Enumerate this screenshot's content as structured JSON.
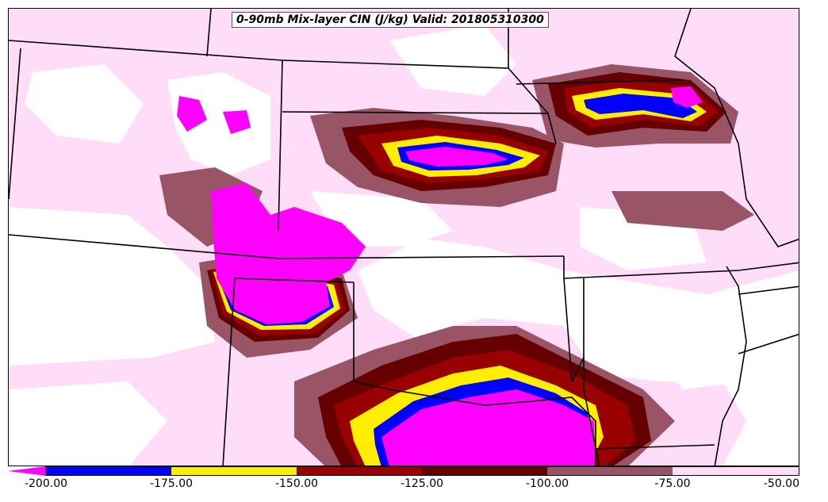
{
  "title": "0-90mb Mix-layer CIN (J/kg) Valid: 201805310300",
  "colorbar": {
    "ticks": [
      "-200.00",
      "-175.00",
      "-150.00",
      "-125.00",
      "-100.00",
      "-75.00",
      "-50.00"
    ],
    "segments": [
      {
        "from": -200,
        "to": -175,
        "color": "#0000ff"
      },
      {
        "from": -175,
        "to": -150,
        "color": "#ffee00"
      },
      {
        "from": -150,
        "to": -125,
        "color": "#990000"
      },
      {
        "from": -125,
        "to": -100,
        "color": "#660000"
      },
      {
        "from": -100,
        "to": -75,
        "color": "#995566"
      },
      {
        "from": -75,
        "to": -50,
        "color": "#ffdcf8"
      }
    ],
    "under_color": "#ff00ff",
    "extend": "min"
  },
  "colors": {
    "magenta": "#ff00ff",
    "blue": "#0000ff",
    "yellow": "#ffee00",
    "dark_red": "#990000",
    "maroon": "#660000",
    "mauve": "#995566",
    "light_pink": "#ffdcf8",
    "boundaries": "#000000"
  }
}
